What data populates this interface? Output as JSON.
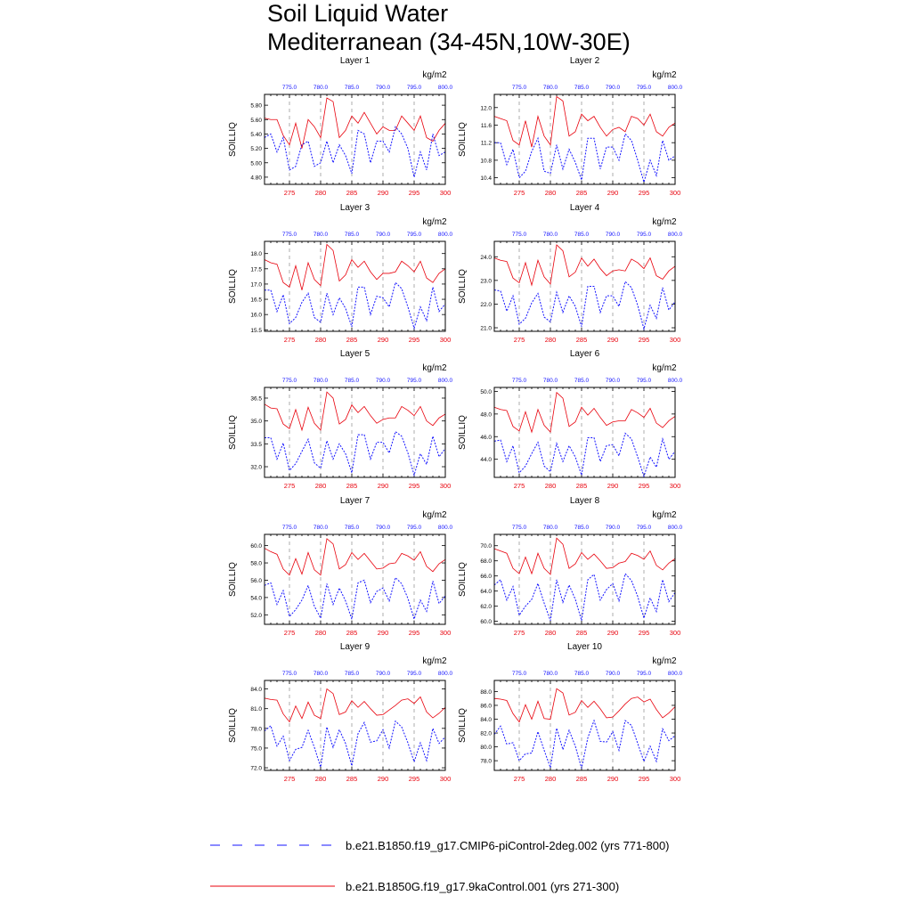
{
  "title_line1": "Soil Liquid Water",
  "title_line2": "Mediterranean (34-45N,10W-30E)",
  "units": "kg/m2",
  "ylabel": "SOILLIQ",
  "colors": {
    "red": "#e8000b",
    "blue": "#1515ff",
    "grid": "#9a9a9a"
  },
  "legend": [
    {
      "label": "b.e21.B1850.f19_g17.CMIP6-piControl-2deg.002 (yrs 771-800)",
      "color": "#1515ff",
      "style": "dashed"
    },
    {
      "label": "b.e21.B1850G.f19_g17.9kaControl.001 (yrs 271-300)",
      "color": "#e8000b",
      "style": "solid"
    }
  ],
  "chart_data": {
    "type": "line",
    "bottom_axis": {
      "range": [
        271,
        300
      ],
      "ticks": [
        275,
        280,
        285,
        290,
        295,
        300
      ]
    },
    "top_axis": {
      "range": [
        771,
        800
      ],
      "ticks": [
        775,
        780,
        785,
        790,
        795,
        800
      ],
      "tick_labels": [
        "775.0",
        "780.0",
        "785.0",
        "790.0",
        "795.0",
        "800.0"
      ]
    },
    "panels": [
      {
        "title": "Layer 1",
        "ylim": [
          4.7,
          5.95
        ],
        "yticks": [
          4.8,
          5.0,
          5.2,
          5.4,
          5.6,
          5.8
        ],
        "ytick_labels": [
          "4.80",
          "5.00",
          "5.20",
          "5.40",
          "5.60",
          "5.80"
        ],
        "red": [
          5.62,
          5.6,
          5.6,
          5.38,
          5.25,
          5.55,
          5.2,
          5.6,
          5.5,
          5.35,
          5.9,
          5.85,
          5.35,
          5.45,
          5.65,
          5.55,
          5.7,
          5.55,
          5.4,
          5.5,
          5.45,
          5.45,
          5.65,
          5.55,
          5.45,
          5.65,
          5.35,
          5.3,
          5.45,
          5.55
        ],
        "blue": [
          5.35,
          5.4,
          5.15,
          5.35,
          4.9,
          4.95,
          5.25,
          5.3,
          4.95,
          5.0,
          5.3,
          5.0,
          5.25,
          5.1,
          4.85,
          5.45,
          5.4,
          5.0,
          5.3,
          5.3,
          5.15,
          5.5,
          5.4,
          5.2,
          4.8,
          5.15,
          4.9,
          5.4,
          5.1,
          5.15
        ]
      },
      {
        "title": "Layer 2",
        "ylim": [
          10.25,
          12.3
        ],
        "yticks": [
          10.4,
          10.8,
          11.2,
          11.6,
          12.0
        ],
        "ytick_labels": [
          "10.4",
          "10.8",
          "11.2",
          "11.6",
          "12.0"
        ],
        "red": [
          11.8,
          11.75,
          11.7,
          11.25,
          11.15,
          11.7,
          11.1,
          11.8,
          11.35,
          11.15,
          12.25,
          12.15,
          11.35,
          11.45,
          11.85,
          11.7,
          11.8,
          11.55,
          11.35,
          11.5,
          11.55,
          11.45,
          11.8,
          11.75,
          11.6,
          11.85,
          11.45,
          11.35,
          11.55,
          11.65
        ],
        "blue": [
          11.2,
          11.2,
          10.7,
          11.05,
          10.4,
          10.55,
          11.0,
          11.3,
          10.55,
          10.5,
          11.15,
          10.6,
          11.05,
          10.75,
          10.35,
          11.3,
          11.3,
          10.6,
          11.1,
          11.1,
          10.8,
          11.4,
          11.25,
          10.8,
          10.3,
          10.8,
          10.45,
          11.25,
          10.8,
          10.9
        ]
      },
      {
        "title": "Layer 3",
        "ylim": [
          15.45,
          18.4
        ],
        "yticks": [
          15.5,
          16.0,
          16.5,
          17.0,
          17.5,
          18.0
        ],
        "ytick_labels": [
          "15.5",
          "16.0",
          "16.5",
          "17.0",
          "17.5",
          "18.0"
        ],
        "red": [
          17.8,
          17.7,
          17.65,
          17.05,
          16.9,
          17.6,
          16.8,
          17.7,
          17.15,
          16.95,
          18.3,
          18.1,
          17.1,
          17.3,
          17.8,
          17.55,
          17.75,
          17.4,
          17.15,
          17.35,
          17.35,
          17.4,
          17.75,
          17.6,
          17.4,
          17.75,
          17.2,
          17.05,
          17.35,
          17.5
        ],
        "blue": [
          16.8,
          16.8,
          16.1,
          16.65,
          15.7,
          15.9,
          16.4,
          16.7,
          15.9,
          15.75,
          16.7,
          16.0,
          16.55,
          16.2,
          15.6,
          16.9,
          16.9,
          16.0,
          16.6,
          16.55,
          16.25,
          17.05,
          16.85,
          16.25,
          15.55,
          16.25,
          15.8,
          16.9,
          16.1,
          16.35
        ]
      },
      {
        "title": "Layer 4",
        "ylim": [
          20.85,
          24.65
        ],
        "yticks": [
          21.0,
          22.0,
          23.0,
          24.0
        ],
        "ytick_labels": [
          "21.0",
          "22.0",
          "23.0",
          "24.0"
        ],
        "red": [
          23.95,
          23.85,
          23.8,
          23.1,
          22.9,
          23.75,
          22.8,
          23.85,
          23.15,
          22.85,
          24.5,
          24.25,
          23.15,
          23.35,
          23.95,
          23.6,
          23.9,
          23.5,
          23.2,
          23.4,
          23.45,
          23.4,
          23.9,
          23.75,
          23.5,
          23.95,
          23.2,
          23.05,
          23.4,
          23.6
        ],
        "blue": [
          22.6,
          22.55,
          21.7,
          22.35,
          21.15,
          21.4,
          22.05,
          22.45,
          21.45,
          21.25,
          22.5,
          21.65,
          22.35,
          21.9,
          21.05,
          22.75,
          22.75,
          21.65,
          22.35,
          22.35,
          21.9,
          22.95,
          22.7,
          21.95,
          20.95,
          21.95,
          21.4,
          22.7,
          21.75,
          22.1
        ]
      },
      {
        "title": "Layer 5",
        "ylim": [
          31.3,
          37.2
        ],
        "yticks": [
          32.0,
          33.5,
          35.0,
          36.5
        ],
        "ytick_labels": [
          "32.0",
          "33.5",
          "35.0",
          "36.5"
        ],
        "red": [
          36.1,
          35.85,
          35.8,
          34.8,
          34.5,
          35.75,
          34.4,
          35.9,
          34.85,
          34.4,
          36.9,
          36.5,
          34.8,
          35.1,
          36.05,
          35.55,
          35.95,
          35.35,
          34.85,
          35.1,
          35.2,
          35.2,
          35.95,
          35.7,
          35.35,
          35.95,
          35.0,
          34.7,
          35.2,
          35.45
        ],
        "blue": [
          33.9,
          33.9,
          32.5,
          33.55,
          31.75,
          32.2,
          33.0,
          33.8,
          32.25,
          31.9,
          33.7,
          32.5,
          33.5,
          32.85,
          31.6,
          34.1,
          34.1,
          32.5,
          33.6,
          33.6,
          32.9,
          34.3,
          34.0,
          32.9,
          31.45,
          32.85,
          32.15,
          34.0,
          32.65,
          33.2
        ]
      },
      {
        "title": "Layer 6",
        "ylim": [
          42.4,
          50.35
        ],
        "yticks": [
          44.0,
          46.0,
          48.0,
          50.0
        ],
        "ytick_labels": [
          "44.0",
          "46.0",
          "48.0",
          "50.0"
        ],
        "red": [
          48.6,
          48.4,
          48.3,
          46.9,
          46.5,
          48.2,
          46.4,
          48.4,
          47.0,
          46.4,
          49.9,
          49.4,
          46.9,
          47.3,
          48.6,
          47.9,
          48.5,
          47.7,
          47.0,
          47.3,
          47.4,
          47.4,
          48.4,
          48.1,
          47.7,
          48.5,
          47.2,
          46.8,
          47.4,
          47.8
        ],
        "blue": [
          45.6,
          45.7,
          43.8,
          45.2,
          42.8,
          43.4,
          44.5,
          45.5,
          43.4,
          42.9,
          45.4,
          43.8,
          45.2,
          44.2,
          42.6,
          45.9,
          45.9,
          43.8,
          45.2,
          45.3,
          44.3,
          46.3,
          45.8,
          44.2,
          42.5,
          44.2,
          43.3,
          45.8,
          44.0,
          44.7
        ]
      },
      {
        "title": "Layer 7",
        "ylim": [
          50.9,
          61.3
        ],
        "yticks": [
          52.0,
          54.0,
          56.0,
          58.0,
          60.0
        ],
        "ytick_labels": [
          "52.0",
          "54.0",
          "56.0",
          "58.0",
          "60.0"
        ],
        "red": [
          59.7,
          59.3,
          59.0,
          57.3,
          56.6,
          58.5,
          56.7,
          59.2,
          57.2,
          56.6,
          60.8,
          60.2,
          57.3,
          57.8,
          59.2,
          58.4,
          59.1,
          58.2,
          57.3,
          57.4,
          57.9,
          58.0,
          59.1,
          58.8,
          58.3,
          59.3,
          57.6,
          57.0,
          57.9,
          58.4
        ],
        "blue": [
          55.4,
          55.7,
          53.2,
          54.8,
          51.8,
          52.6,
          53.7,
          55.4,
          53.0,
          51.6,
          55.6,
          53.2,
          55.1,
          53.6,
          51.5,
          55.7,
          56.0,
          53.4,
          54.7,
          55.1,
          53.6,
          56.3,
          55.6,
          53.9,
          51.5,
          53.7,
          52.4,
          55.9,
          53.3,
          54.2
        ]
      },
      {
        "title": "Layer 8",
        "ylim": [
          59.6,
          71.5
        ],
        "yticks": [
          60.0,
          62.0,
          64.0,
          66.0,
          68.0,
          70.0
        ],
        "ytick_labels": [
          "60.0",
          "62.0",
          "64.0",
          "66.0",
          "68.0",
          "70.0"
        ],
        "red": [
          69.6,
          69.3,
          69.0,
          67.0,
          66.3,
          68.5,
          66.3,
          69.0,
          67.0,
          66.2,
          71.0,
          70.2,
          67.0,
          67.6,
          69.1,
          68.2,
          68.9,
          68.0,
          67.0,
          67.1,
          67.7,
          67.9,
          69.0,
          68.7,
          68.2,
          69.3,
          67.4,
          66.8,
          67.7,
          68.3
        ],
        "blue": [
          64.8,
          65.5,
          62.8,
          64.6,
          60.8,
          62.0,
          62.9,
          65.0,
          62.4,
          60.1,
          65.5,
          62.5,
          64.8,
          62.9,
          60.1,
          65.5,
          66.2,
          62.8,
          64.2,
          65.0,
          62.7,
          66.3,
          65.4,
          63.3,
          60.4,
          63.1,
          61.3,
          65.5,
          62.6,
          63.8
        ]
      },
      {
        "title": "Layer 9",
        "ylim": [
          71.6,
          85.3
        ],
        "yticks": [
          72.0,
          75.0,
          78.0,
          81.0,
          84.0
        ],
        "ytick_labels": [
          "72.0",
          "75.0",
          "78.0",
          "81.0",
          "84.0"
        ],
        "red": [
          82.6,
          82.4,
          82.3,
          80.2,
          79.0,
          81.4,
          79.5,
          82.0,
          80.0,
          79.5,
          84.0,
          83.3,
          80.1,
          80.5,
          82.2,
          81.2,
          82.1,
          81.0,
          80.0,
          80.1,
          80.8,
          81.5,
          82.3,
          82.5,
          81.8,
          82.8,
          80.5,
          79.6,
          80.3,
          81.2
        ],
        "blue": [
          77.6,
          78.4,
          75.3,
          76.8,
          73.1,
          74.8,
          75.1,
          77.7,
          75.1,
          72.1,
          78.2,
          75.1,
          77.8,
          75.7,
          72.3,
          77.2,
          78.9,
          75.9,
          76.1,
          77.8,
          75.0,
          79.1,
          78.2,
          75.8,
          72.9,
          75.8,
          73.1,
          78.0,
          75.7,
          76.7
        ]
      },
      {
        "title": "Layer 10",
        "ylim": [
          76.6,
          89.6
        ],
        "yticks": [
          78.0,
          80.0,
          82.0,
          84.0,
          86.0,
          88.0
        ],
        "ytick_labels": [
          "78.0",
          "80.0",
          "82.0",
          "84.0",
          "86.0",
          "88.0"
        ],
        "red": [
          87.0,
          86.9,
          86.7,
          84.8,
          83.6,
          86.1,
          84.0,
          86.6,
          84.1,
          84.0,
          88.4,
          87.8,
          84.6,
          85.0,
          86.7,
          85.7,
          86.6,
          85.5,
          84.2,
          84.3,
          85.2,
          86.2,
          87.0,
          87.2,
          86.5,
          86.9,
          85.4,
          84.2,
          84.9,
          85.8
        ],
        "blue": [
          81.8,
          83.0,
          80.4,
          80.6,
          78.0,
          79.0,
          79.1,
          82.2,
          79.5,
          77.0,
          82.7,
          79.6,
          82.4,
          80.1,
          76.9,
          81.3,
          83.8,
          80.8,
          80.7,
          82.2,
          79.5,
          83.8,
          83.1,
          80.5,
          77.9,
          80.1,
          77.9,
          82.6,
          80.9,
          81.6
        ]
      }
    ]
  }
}
